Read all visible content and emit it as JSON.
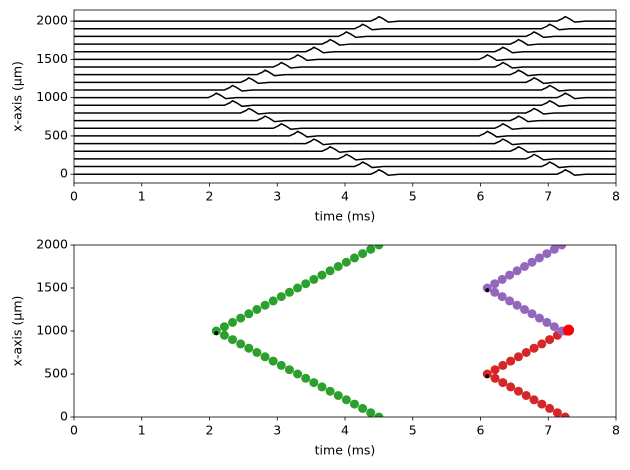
{
  "chart_data": [
    {
      "type": "traces",
      "xlabel": "time (ms)",
      "ylabel": "x-axis (µm)",
      "xlim": [
        0,
        8
      ],
      "ylim": [
        -115,
        2145
      ],
      "xticks": [
        0,
        1,
        2,
        3,
        4,
        5,
        6,
        7,
        8
      ],
      "yticks": [
        0,
        500,
        1000,
        1500,
        2000
      ],
      "color": "#000000",
      "offsets": [
        0,
        100,
        200,
        300,
        400,
        500,
        600,
        700,
        800,
        900,
        1000,
        1100,
        1200,
        1300,
        1400,
        1500,
        1600,
        1700,
        1800,
        1900,
        2000
      ],
      "spikes": [
        [
          4.5,
          7.25
        ],
        [
          4.26,
          7.02
        ],
        [
          4.02,
          6.79
        ],
        [
          3.78,
          6.56
        ],
        [
          3.54,
          6.33
        ],
        [
          3.3,
          6.1
        ],
        [
          3.06,
          6.33
        ],
        [
          2.82,
          6.56
        ],
        [
          2.58,
          6.79
        ],
        [
          2.34,
          7.02
        ],
        [
          2.1,
          7.25
        ],
        [
          2.34,
          7.02
        ],
        [
          2.58,
          6.79
        ],
        [
          2.82,
          6.56
        ],
        [
          3.06,
          6.33
        ],
        [
          3.3,
          6.1
        ],
        [
          3.54,
          6.33
        ],
        [
          3.78,
          6.56
        ],
        [
          4.02,
          6.79
        ],
        [
          4.26,
          7.02
        ],
        [
          4.5,
          7.25
        ]
      ]
    },
    {
      "type": "scatter",
      "xlabel": "time (ms)",
      "ylabel": "x-axis (µm)",
      "xlim": [
        0,
        8
      ],
      "ylim": [
        0,
        2000
      ],
      "xticks": [
        0,
        1,
        2,
        3,
        4,
        5,
        6,
        7,
        8
      ],
      "yticks": [
        0,
        500,
        1000,
        1500,
        2000
      ],
      "series": [
        {
          "color": "#2ca02c",
          "marker_size": 4.5,
          "x": [
            4.5,
            4.38,
            4.26,
            4.14,
            4.02,
            3.9,
            3.78,
            3.66,
            3.54,
            3.42,
            3.3,
            3.18,
            3.06,
            2.94,
            2.82,
            2.7,
            2.58,
            2.46,
            2.34,
            2.22,
            2.1,
            2.22,
            2.34,
            2.46,
            2.58,
            2.7,
            2.82,
            2.94,
            3.06,
            3.18,
            3.3,
            3.42,
            3.54,
            3.66,
            3.78,
            3.9,
            4.02,
            4.14,
            4.26,
            4.38,
            4.5
          ],
          "values": [
            0,
            50,
            100,
            150,
            200,
            250,
            300,
            350,
            400,
            450,
            500,
            550,
            600,
            650,
            700,
            750,
            800,
            850,
            900,
            950,
            1000,
            1050,
            1100,
            1150,
            1200,
            1250,
            1300,
            1350,
            1400,
            1450,
            1500,
            1550,
            1600,
            1650,
            1700,
            1750,
            1800,
            1850,
            1900,
            1950,
            2000
          ]
        },
        {
          "color": "#d62728",
          "marker_size": 4.5,
          "x": [
            7.25,
            7.135,
            7.02,
            6.905,
            6.79,
            6.675,
            6.56,
            6.445,
            6.33,
            6.215,
            6.1,
            6.215,
            6.33,
            6.445,
            6.56,
            6.675,
            6.79,
            6.905,
            7.02,
            7.135,
            7.25
          ],
          "values": [
            0,
            50,
            100,
            150,
            200,
            250,
            300,
            350,
            400,
            450,
            500,
            550,
            600,
            650,
            700,
            750,
            800,
            850,
            900,
            950,
            1000
          ]
        },
        {
          "color": "#9467bd",
          "marker_size": 4.5,
          "x": [
            7.2,
            7.09,
            6.98,
            6.87,
            6.76,
            6.65,
            6.54,
            6.43,
            6.32,
            6.21,
            6.1,
            6.21,
            6.32,
            6.43,
            6.54,
            6.65,
            6.76,
            6.87,
            6.98,
            7.09,
            7.2
          ],
          "values": [
            1000,
            1050,
            1100,
            1150,
            1200,
            1250,
            1300,
            1350,
            1400,
            1450,
            1500,
            1550,
            1600,
            1650,
            1700,
            1750,
            1800,
            1850,
            1900,
            1950,
            2000
          ]
        },
        {
          "color": "#ff0000",
          "marker_size": 5.5,
          "x": [
            7.3
          ],
          "values": [
            1010
          ]
        },
        {
          "color": "#000000",
          "marker_size": 2,
          "x": [
            2.1,
            6.1,
            6.1
          ],
          "values": [
            975,
            475,
            1475
          ]
        }
      ]
    }
  ]
}
